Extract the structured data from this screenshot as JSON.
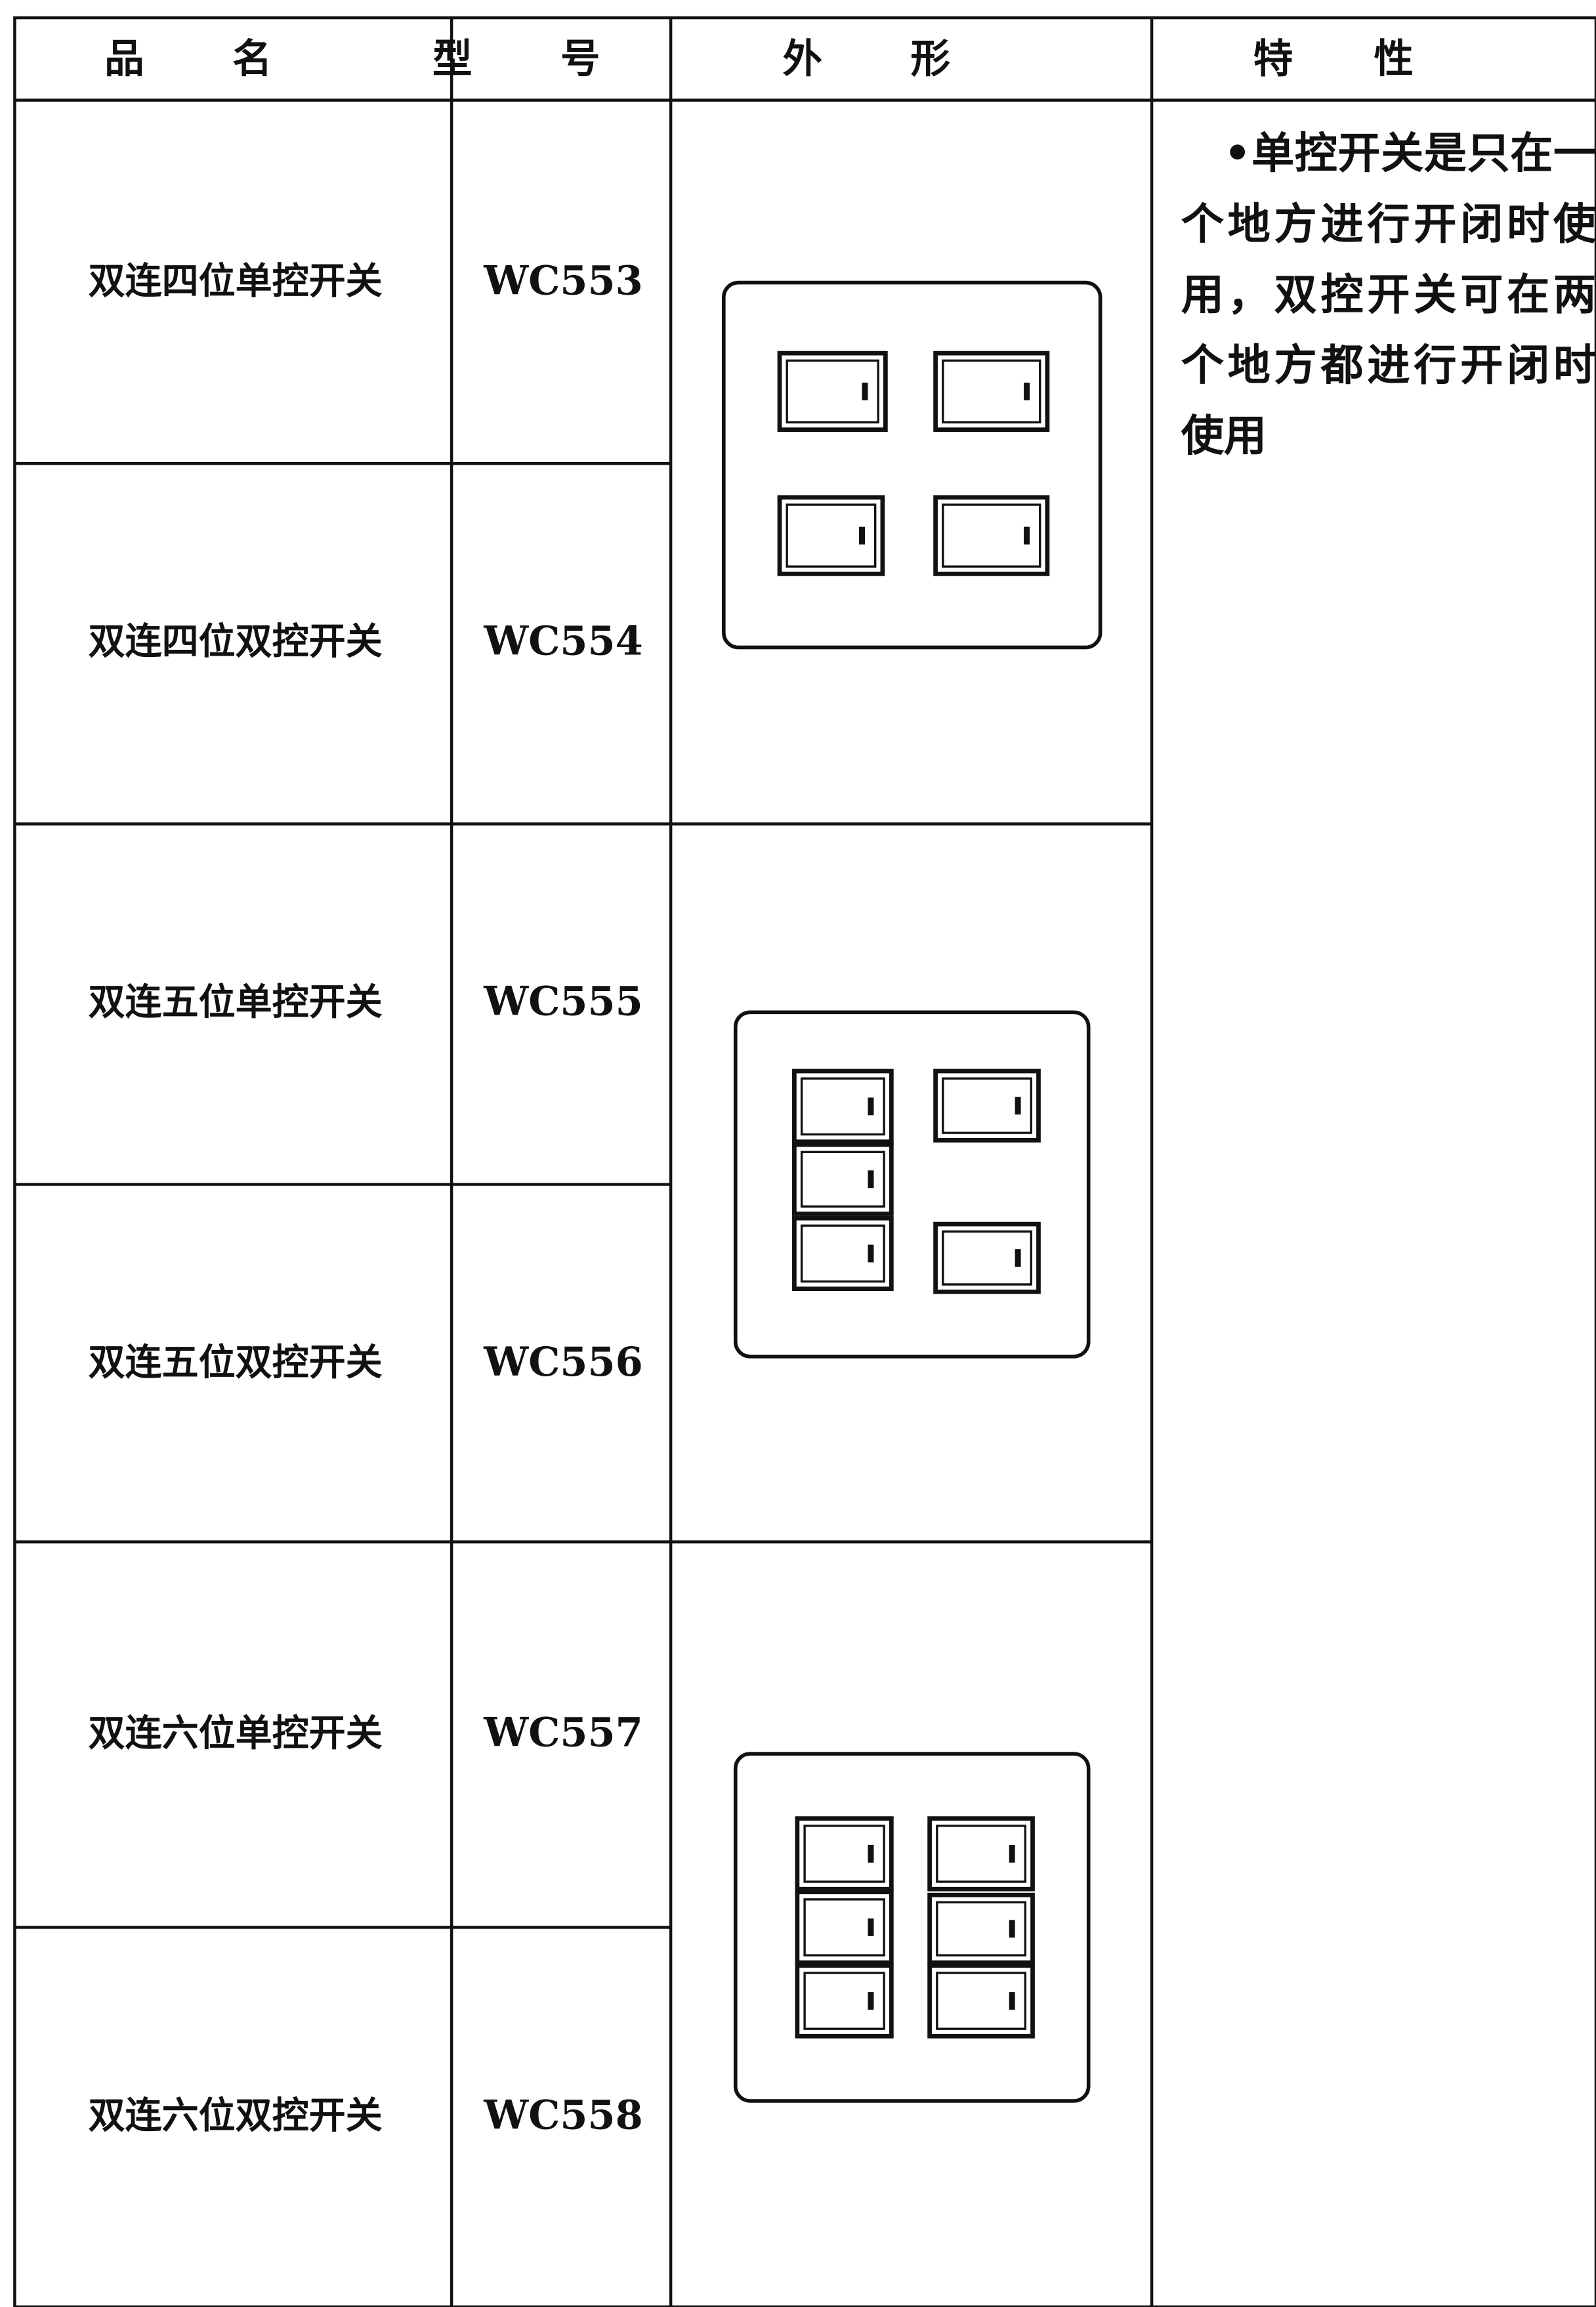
{
  "table": {
    "header": [
      "品名",
      "型号",
      "外形",
      "特性"
    ],
    "rows": [
      {
        "name": "双连四位单控开关",
        "model": "WC553"
      },
      {
        "name": "双连四位双控开关",
        "model": "WC554"
      },
      {
        "name": "双连五位单控开关",
        "model": "WC555"
      },
      {
        "name": "双连五位双控开关",
        "model": "WC556"
      },
      {
        "name": "双连六位单控开关",
        "model": "WC557"
      },
      {
        "name": "双连六位双控开关",
        "model": "WC558"
      }
    ],
    "features": "•单控开关是只在一个地方进行开闭时使用，双控开关可在两个地方都进行开闭时使用"
  }
}
